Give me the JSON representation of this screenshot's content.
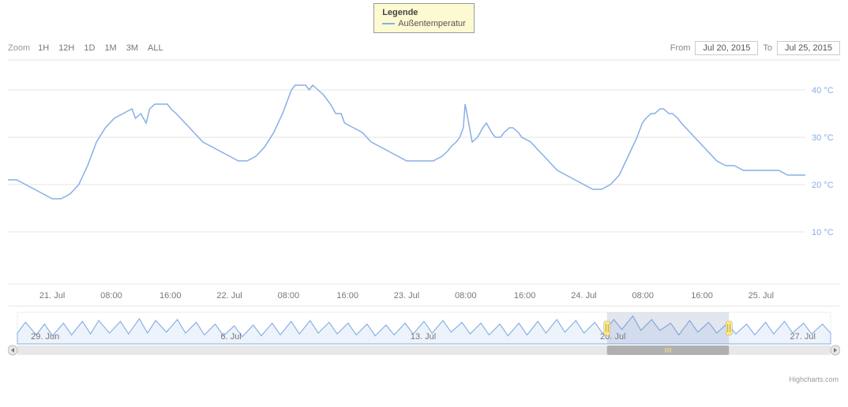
{
  "legend": {
    "title": "Legende",
    "series_label": "Außentemperatur",
    "box_bg": "#fdfad2",
    "box_border": "#999"
  },
  "toolbar": {
    "zoom_label": "Zoom",
    "buttons": [
      "1H",
      "12H",
      "1D",
      "1M",
      "3M",
      "ALL"
    ],
    "from_label": "From",
    "to_label": "To",
    "from_value": "Jul 20, 2015",
    "to_value": "Jul 25, 2015"
  },
  "chart": {
    "type": "line",
    "series_color": "#88aee6",
    "background_color": "#ffffff",
    "grid_color": "#e6e6e6",
    "axis_label_color": "#777777",
    "y_label_color": "#88aee6",
    "line_width": 1.5,
    "axis_fontsize": 11,
    "yaxis": {
      "min": 5,
      "max": 45,
      "ticks": [
        10,
        20,
        30,
        40
      ],
      "labels": [
        "10 °C",
        "20 °C",
        "30 °C",
        "40 °C"
      ]
    },
    "xaxis": {
      "ticks_t": [
        0.25,
        1.25,
        2.25,
        3.25,
        4.25
      ],
      "labels": [
        "21. Jul",
        "22. Jul",
        "23. Jul",
        "24. Jul",
        "25. Jul"
      ],
      "minor_per_day": [
        "08:00",
        "16:00"
      ]
    },
    "t_range": {
      "start": 0,
      "end": 4.5
    },
    "values": [
      [
        0.0,
        21
      ],
      [
        0.05,
        21
      ],
      [
        0.1,
        20
      ],
      [
        0.15,
        19
      ],
      [
        0.2,
        18
      ],
      [
        0.25,
        17
      ],
      [
        0.3,
        17
      ],
      [
        0.35,
        18
      ],
      [
        0.4,
        20
      ],
      [
        0.45,
        24
      ],
      [
        0.5,
        29
      ],
      [
        0.55,
        32
      ],
      [
        0.6,
        34
      ],
      [
        0.65,
        35
      ],
      [
        0.7,
        36
      ],
      [
        0.72,
        34
      ],
      [
        0.75,
        35
      ],
      [
        0.78,
        33
      ],
      [
        0.8,
        36
      ],
      [
        0.83,
        37
      ],
      [
        0.85,
        37
      ],
      [
        0.88,
        37
      ],
      [
        0.9,
        37
      ],
      [
        0.92,
        36
      ],
      [
        0.95,
        35
      ],
      [
        1.0,
        33
      ],
      [
        1.05,
        31
      ],
      [
        1.1,
        29
      ],
      [
        1.15,
        28
      ],
      [
        1.2,
        27
      ],
      [
        1.25,
        26
      ],
      [
        1.3,
        25
      ],
      [
        1.35,
        25
      ],
      [
        1.4,
        26
      ],
      [
        1.45,
        28
      ],
      [
        1.5,
        31
      ],
      [
        1.55,
        35
      ],
      [
        1.58,
        38
      ],
      [
        1.6,
        40
      ],
      [
        1.62,
        41
      ],
      [
        1.65,
        41
      ],
      [
        1.68,
        41
      ],
      [
        1.7,
        40
      ],
      [
        1.72,
        41
      ],
      [
        1.75,
        40
      ],
      [
        1.78,
        39
      ],
      [
        1.8,
        38
      ],
      [
        1.82,
        37
      ],
      [
        1.85,
        35
      ],
      [
        1.88,
        35
      ],
      [
        1.9,
        33
      ],
      [
        1.95,
        32
      ],
      [
        2.0,
        31
      ],
      [
        2.05,
        29
      ],
      [
        2.1,
        28
      ],
      [
        2.15,
        27
      ],
      [
        2.2,
        26
      ],
      [
        2.25,
        25
      ],
      [
        2.3,
        25
      ],
      [
        2.35,
        25
      ],
      [
        2.4,
        25
      ],
      [
        2.45,
        26
      ],
      [
        2.48,
        27
      ],
      [
        2.5,
        28
      ],
      [
        2.53,
        29
      ],
      [
        2.55,
        30
      ],
      [
        2.57,
        32
      ],
      [
        2.58,
        37
      ],
      [
        2.6,
        33
      ],
      [
        2.62,
        29
      ],
      [
        2.65,
        30
      ],
      [
        2.68,
        32
      ],
      [
        2.7,
        33
      ],
      [
        2.73,
        31
      ],
      [
        2.75,
        30
      ],
      [
        2.78,
        30
      ],
      [
        2.8,
        31
      ],
      [
        2.83,
        32
      ],
      [
        2.85,
        32
      ],
      [
        2.88,
        31
      ],
      [
        2.9,
        30
      ],
      [
        2.95,
        29
      ],
      [
        3.0,
        27
      ],
      [
        3.05,
        25
      ],
      [
        3.1,
        23
      ],
      [
        3.15,
        22
      ],
      [
        3.2,
        21
      ],
      [
        3.25,
        20
      ],
      [
        3.3,
        19
      ],
      [
        3.35,
        19
      ],
      [
        3.4,
        20
      ],
      [
        3.45,
        22
      ],
      [
        3.5,
        26
      ],
      [
        3.55,
        30
      ],
      [
        3.58,
        33
      ],
      [
        3.6,
        34
      ],
      [
        3.63,
        35
      ],
      [
        3.65,
        35
      ],
      [
        3.68,
        36
      ],
      [
        3.7,
        36
      ],
      [
        3.73,
        35
      ],
      [
        3.75,
        35
      ],
      [
        3.78,
        34
      ],
      [
        3.8,
        33
      ],
      [
        3.85,
        31
      ],
      [
        3.9,
        29
      ],
      [
        3.95,
        27
      ],
      [
        4.0,
        25
      ],
      [
        4.05,
        24
      ],
      [
        4.1,
        24
      ],
      [
        4.15,
        23
      ],
      [
        4.2,
        23
      ],
      [
        4.25,
        23
      ],
      [
        4.3,
        23
      ],
      [
        4.35,
        23
      ],
      [
        4.4,
        22
      ],
      [
        4.45,
        22
      ],
      [
        4.5,
        22
      ]
    ]
  },
  "navigator": {
    "range_t": {
      "start": 0,
      "end": 30
    },
    "selection": {
      "start": 21.75,
      "end": 26.25
    },
    "xaxis_labels": [
      {
        "t": 0.5,
        "label": "29. Jun"
      },
      {
        "t": 7.5,
        "label": "6. Jul"
      },
      {
        "t": 14.5,
        "label": "13. Jul"
      },
      {
        "t": 21.5,
        "label": "20. Jul"
      },
      {
        "t": 28.5,
        "label": "27. Jul"
      }
    ],
    "y_range": {
      "min": 10,
      "max": 45
    },
    "series_color": "#88aee6",
    "fill_opacity": 0.15,
    "handle_color": "#ffe87c",
    "mask_color": "rgba(120,140,180,0.22)",
    "values": [
      [
        0,
        22
      ],
      [
        0.3,
        34
      ],
      [
        0.7,
        20
      ],
      [
        1.0,
        32
      ],
      [
        1.3,
        19
      ],
      [
        1.7,
        33
      ],
      [
        2.0,
        20
      ],
      [
        2.4,
        35
      ],
      [
        2.7,
        21
      ],
      [
        3.0,
        36
      ],
      [
        3.4,
        22
      ],
      [
        3.8,
        35
      ],
      [
        4.1,
        21
      ],
      [
        4.5,
        38
      ],
      [
        4.8,
        22
      ],
      [
        5.1,
        36
      ],
      [
        5.5,
        23
      ],
      [
        5.9,
        37
      ],
      [
        6.2,
        22
      ],
      [
        6.6,
        34
      ],
      [
        6.9,
        20
      ],
      [
        7.3,
        32
      ],
      [
        7.6,
        19
      ],
      [
        8.0,
        30
      ],
      [
        8.3,
        18
      ],
      [
        8.7,
        31
      ],
      [
        9.0,
        19
      ],
      [
        9.4,
        33
      ],
      [
        9.7,
        20
      ],
      [
        10.1,
        35
      ],
      [
        10.4,
        21
      ],
      [
        10.8,
        36
      ],
      [
        11.1,
        22
      ],
      [
        11.5,
        34
      ],
      [
        11.8,
        21
      ],
      [
        12.2,
        33
      ],
      [
        12.5,
        20
      ],
      [
        12.9,
        32
      ],
      [
        13.2,
        19
      ],
      [
        13.6,
        31
      ],
      [
        13.9,
        20
      ],
      [
        14.3,
        33
      ],
      [
        14.6,
        21
      ],
      [
        15.0,
        35
      ],
      [
        15.3,
        22
      ],
      [
        15.7,
        36
      ],
      [
        16.0,
        23
      ],
      [
        16.4,
        34
      ],
      [
        16.7,
        21
      ],
      [
        17.1,
        33
      ],
      [
        17.4,
        20
      ],
      [
        17.8,
        32
      ],
      [
        18.1,
        19
      ],
      [
        18.5,
        33
      ],
      [
        18.8,
        20
      ],
      [
        19.2,
        35
      ],
      [
        19.5,
        22
      ],
      [
        19.9,
        37
      ],
      [
        20.2,
        23
      ],
      [
        20.6,
        36
      ],
      [
        20.9,
        22
      ],
      [
        21.3,
        34
      ],
      [
        21.6,
        21
      ],
      [
        22.0,
        37
      ],
      [
        22.3,
        26
      ],
      [
        22.7,
        41
      ],
      [
        23.0,
        25
      ],
      [
        23.4,
        37
      ],
      [
        23.7,
        25
      ],
      [
        24.1,
        33
      ],
      [
        24.4,
        20
      ],
      [
        24.8,
        36
      ],
      [
        25.1,
        23
      ],
      [
        25.5,
        34
      ],
      [
        25.8,
        22
      ],
      [
        26.2,
        33
      ],
      [
        26.5,
        21
      ],
      [
        26.9,
        32
      ],
      [
        27.2,
        20
      ],
      [
        27.6,
        34
      ],
      [
        27.9,
        21
      ],
      [
        28.3,
        35
      ],
      [
        28.6,
        22
      ],
      [
        29.0,
        33
      ],
      [
        29.3,
        21
      ],
      [
        29.7,
        32
      ],
      [
        30.0,
        22
      ]
    ]
  },
  "credit": {
    "text": "Highcharts.com"
  }
}
